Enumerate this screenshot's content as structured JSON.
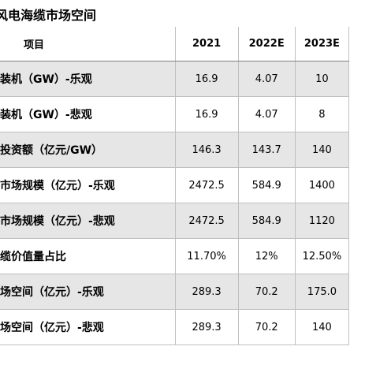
{
  "title": "风电海缆市场空间",
  "table": {
    "header": [
      "项目",
      "2021",
      "2022E",
      "2023E"
    ],
    "rows": [
      [
        "装机（GW）-乐观",
        "16.9",
        "4.07",
        "10"
      ],
      [
        "装机（GW）-悲观",
        "16.9",
        "4.07",
        "8"
      ],
      [
        "投资额（亿元/GW）",
        "146.3",
        "143.7",
        "140"
      ],
      [
        "市场规模（亿元）-乐观",
        "2472.5",
        "584.9",
        "1400"
      ],
      [
        "市场规模（亿元）-悲观",
        "2472.5",
        "584.9",
        "1120"
      ],
      [
        "缆价值量占比",
        "11.70%",
        "12%",
        "12.50%"
      ],
      [
        "场空间（亿元）-乐观",
        "289.3",
        "70.2",
        "175.0"
      ],
      [
        "场空间（亿元）-悲观",
        "289.3",
        "70.2",
        "140"
      ]
    ]
  }
}
